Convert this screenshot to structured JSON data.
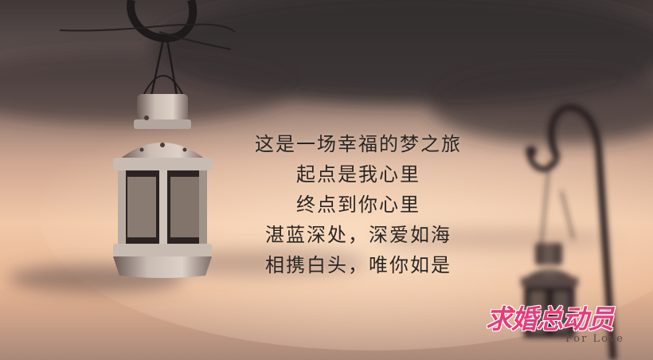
{
  "poem": {
    "lines": [
      "这是一场幸福的梦之旅",
      "起点是我心里",
      "终点到你心里",
      "湛蓝深处，深爱如海",
      "相携白头，唯你如是"
    ]
  },
  "logo": {
    "main_text": "求婚总动员",
    "sub_text": "For Love"
  },
  "colors": {
    "sky_top": "#4b4242",
    "sky_glow": "#f2c7a6",
    "logo_pink": "#e93a78"
  }
}
